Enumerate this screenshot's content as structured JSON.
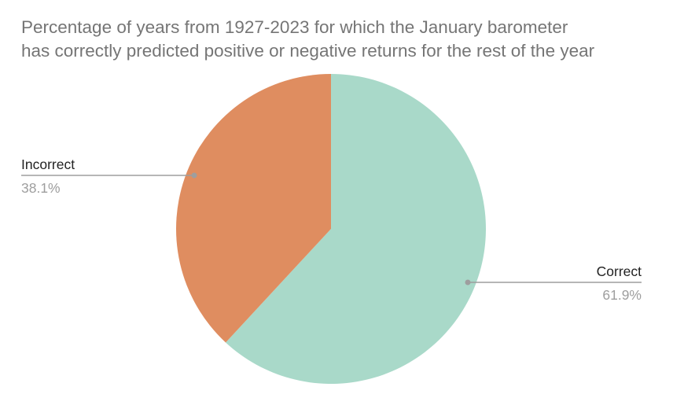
{
  "chart_data": {
    "type": "pie",
    "title": "Percentage of years from 1927-2023 for which the January barometer has correctly predicted positive or negative returns for the rest of the year",
    "title_lines": [
      "Percentage of years from 1927-2023 for which the January barometer",
      "has correctly predicted positive or negative returns for the rest of the year"
    ],
    "categories": [
      "Correct",
      "Incorrect"
    ],
    "values": [
      61.9,
      38.1
    ],
    "value_labels": [
      "61.9%",
      "38.1%"
    ],
    "colors": [
      "#a9d9c9",
      "#df8d60"
    ],
    "start_angle_deg": 0,
    "direction": "clockwise",
    "legend": "none",
    "labels_position": "outside-with-leader-lines"
  },
  "slices": {
    "correct": {
      "label": "Correct",
      "pct": "61.9%"
    },
    "incorrect": {
      "label": "Incorrect",
      "pct": "38.1%"
    }
  }
}
